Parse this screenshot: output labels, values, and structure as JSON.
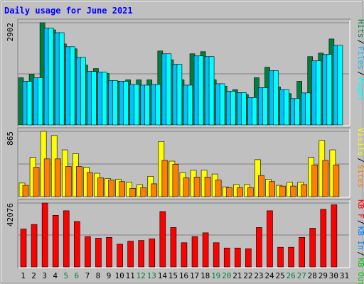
{
  "chart_data": {
    "type": "bar",
    "title": "Daily usage for June 2021",
    "days": [
      "1",
      "2",
      "3",
      "4",
      "5",
      "6",
      "7",
      "8",
      "9",
      "10",
      "11",
      "12",
      "13",
      "14",
      "15",
      "16",
      "17",
      "18",
      "19",
      "20",
      "21",
      "22",
      "23",
      "24",
      "25",
      "26",
      "27",
      "28",
      "29",
      "30",
      "31"
    ],
    "weekend_days": [
      "5",
      "6",
      "12",
      "13",
      "19",
      "20",
      "26",
      "27"
    ],
    "colors": {
      "background": "#ffffff",
      "frame": "#c0c0c0",
      "plot": "#c0c0c0",
      "title": "#0000ff",
      "hits": "#008040",
      "files": "#00c0ff",
      "pages": "#00ffff",
      "visits": "#ffff00",
      "sites": "#ff8000",
      "kbytes": "#ff0000",
      "kb_in": "#0080ff",
      "kb_out": "#00c000",
      "day_normal": "#000000",
      "day_weekend": "#008040"
    },
    "panels": [
      {
        "id": "hits",
        "ymax_label": "2902",
        "ymax": 2902,
        "legend": [
          {
            "text": "Hits",
            "color": "#008040"
          },
          {
            "text": "Files",
            "color": "#00c0ff"
          },
          {
            "text": "Pages",
            "color": "#00ffff"
          }
        ],
        "series": [
          {
            "name": "Hits",
            "color": "#008040",
            "values": [
              1340,
              1440,
              2902,
              2700,
              2300,
              2160,
              1700,
              1600,
              1460,
              1240,
              1280,
              1280,
              1280,
              2100,
              1850,
              1280,
              2020,
              2080,
              1280,
              1100,
              1000,
              860,
              1340,
              1640,
              1080,
              890,
              1240,
              1940,
              2040,
              2440,
              0
            ]
          },
          {
            "name": "Files",
            "color": "#00c0ff",
            "values": [
              1240,
              1340,
              2750,
              2620,
              2220,
              1920,
              1520,
              1500,
              1260,
              1240,
              1150,
              1130,
              1150,
              2020,
              1720,
              1130,
              1960,
              1940,
              1170,
              960,
              920,
              780,
              1060,
              1540,
              1000,
              750,
              910,
              1820,
              2000,
              2260,
              0
            ]
          },
          {
            "name": "Pages",
            "color": "#00ffff",
            "values": [
              1240,
              1340,
              2750,
              2620,
              2220,
              1920,
              1520,
              1500,
              1260,
              1240,
              1150,
              1130,
              1150,
              2020,
              1720,
              1130,
              1960,
              1940,
              1170,
              960,
              920,
              780,
              1060,
              1540,
              1000,
              750,
              910,
              1820,
              2000,
              2260,
              0
            ]
          }
        ]
      },
      {
        "id": "visits",
        "ymax_label": "865",
        "ymax": 865,
        "legend": [
          {
            "text": "Visits",
            "color": "#ffff00"
          },
          {
            "text": "Sites",
            "color": "#ff8000"
          }
        ],
        "series": [
          {
            "name": "Visits",
            "color": "#ffff00",
            "values": [
              180,
              520,
              865,
              810,
              620,
              570,
              390,
              310,
              240,
              230,
              190,
              160,
              270,
              730,
              470,
              320,
              350,
              350,
              300,
              130,
              160,
              160,
              490,
              230,
              150,
              190,
              190,
              520,
              745,
              620,
              0
            ]
          },
          {
            "name": "Sites",
            "color": "#ff8000",
            "values": [
              150,
              390,
              500,
              500,
              400,
              400,
              320,
              250,
              220,
              200,
              110,
              120,
              170,
              480,
              430,
              250,
              260,
              260,
              220,
              120,
              120,
              120,
              280,
              200,
              140,
              140,
              160,
              420,
              480,
              420,
              0
            ]
          }
        ]
      },
      {
        "id": "kbytes",
        "ymax_label": "42076",
        "ymax": 42076,
        "legend": [
          {
            "text": "KB F",
            "color": "#ff0000"
          },
          {
            "text": "KB In",
            "color": "#0080ff"
          },
          {
            "text": "KB Out",
            "color": "#00c000"
          }
        ],
        "series": [
          {
            "name": "KB F",
            "color": "#ff0000",
            "values": [
              25000,
              28000,
              42076,
              34000,
              37000,
              30000,
              20000,
              19000,
              19500,
              15000,
              17000,
              17500,
              18500,
              36500,
              26000,
              16000,
              20000,
              22500,
              16000,
              12500,
              12500,
              12000,
              26000,
              37000,
              13000,
              13000,
              19500,
              25500,
              38000,
              41000,
              0
            ]
          }
        ]
      }
    ]
  }
}
